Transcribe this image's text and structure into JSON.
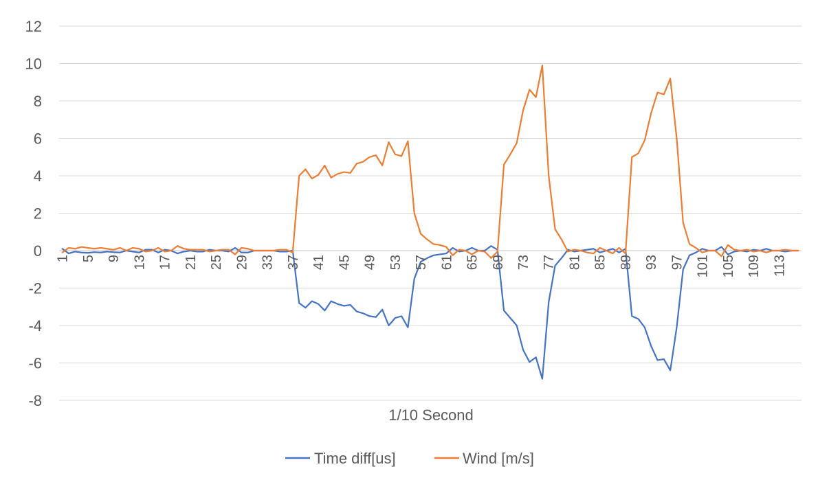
{
  "chart_data": {
    "type": "line",
    "title": "",
    "xlabel": "1/10 Second",
    "ylabel": "",
    "ylim": [
      -8,
      12
    ],
    "yticks": [
      12,
      10,
      8,
      6,
      4,
      2,
      0,
      -2,
      -4,
      -6,
      -8
    ],
    "x": [
      1,
      2,
      3,
      4,
      5,
      6,
      7,
      8,
      9,
      10,
      11,
      12,
      13,
      14,
      15,
      16,
      17,
      18,
      19,
      20,
      21,
      22,
      23,
      24,
      25,
      26,
      27,
      28,
      29,
      30,
      31,
      32,
      33,
      34,
      35,
      36,
      37,
      38,
      39,
      40,
      41,
      42,
      43,
      44,
      45,
      46,
      47,
      48,
      49,
      50,
      51,
      52,
      53,
      54,
      55,
      56,
      57,
      58,
      59,
      60,
      61,
      62,
      63,
      64,
      65,
      66,
      67,
      68,
      69,
      70,
      71,
      72,
      73,
      74,
      75,
      76,
      77,
      78,
      79,
      80,
      81,
      82,
      83,
      84,
      85,
      86,
      87,
      88,
      89,
      90,
      91,
      92,
      93,
      94,
      95,
      96,
      97,
      98,
      99,
      100,
      101,
      102,
      103,
      104,
      105,
      106,
      107,
      108,
      109,
      110,
      111,
      112,
      113,
      114,
      115,
      116
    ],
    "xtick_labels": [
      "1",
      "5",
      "9",
      "13",
      "17",
      "21",
      "25",
      "29",
      "33",
      "37",
      "41",
      "45",
      "49",
      "53",
      "57",
      "61",
      "65",
      "69",
      "73",
      "77",
      "81",
      "85",
      "89",
      "93",
      "97",
      "101",
      "105",
      "109",
      "113"
    ],
    "grid": "horizontal",
    "legend_position": "bottom",
    "series": [
      {
        "name": "Time diff[us]",
        "color": "#4472C4",
        "values": [
          0.1,
          -0.15,
          -0.05,
          -0.1,
          -0.12,
          -0.08,
          -0.1,
          -0.05,
          -0.08,
          -0.1,
          0.0,
          -0.05,
          -0.1,
          0.05,
          0.05,
          -0.1,
          0.05,
          0.0,
          -0.15,
          -0.05,
          0.0,
          -0.05,
          -0.05,
          0.05,
          0.0,
          0.0,
          -0.05,
          0.15,
          -0.1,
          -0.1,
          0.0,
          0.0,
          0.0,
          0.0,
          -0.05,
          -0.05,
          0.0,
          -2.8,
          -3.05,
          -2.7,
          -2.85,
          -3.2,
          -2.7,
          -2.85,
          -2.95,
          -2.9,
          -3.25,
          -3.35,
          -3.5,
          -3.55,
          -3.15,
          -4.0,
          -3.6,
          -3.5,
          -4.1,
          -1.5,
          -0.6,
          -0.4,
          -0.25,
          -0.2,
          -0.15,
          0.15,
          -0.05,
          0.0,
          0.15,
          0.0,
          0.0,
          0.25,
          0.05,
          -3.2,
          -3.6,
          -4.0,
          -5.3,
          -5.95,
          -5.7,
          -6.85,
          -2.75,
          -0.8,
          -0.4,
          0.05,
          -0.05,
          0.0,
          0.05,
          0.1,
          -0.1,
          0.0,
          0.1,
          -0.1,
          0.1,
          -3.5,
          -3.65,
          -4.1,
          -5.1,
          -5.85,
          -5.8,
          -6.4,
          -4.1,
          -1.0,
          -0.25,
          -0.1,
          0.1,
          0.0,
          0.0,
          0.2,
          -0.2,
          -0.05,
          0.0,
          -0.05,
          0.05,
          0.0,
          0.1,
          0.0,
          0.0,
          -0.05,
          0.0,
          0.0
        ]
      },
      {
        "name": "Wind [m/s]",
        "color": "#ED7D31",
        "values": [
          -0.1,
          0.15,
          0.1,
          0.2,
          0.15,
          0.1,
          0.15,
          0.1,
          0.05,
          0.15,
          0.0,
          0.15,
          0.1,
          -0.05,
          0.0,
          0.15,
          -0.05,
          0.0,
          0.25,
          0.1,
          0.05,
          0.05,
          0.05,
          -0.05,
          0.0,
          0.05,
          0.05,
          -0.2,
          0.15,
          0.1,
          0.0,
          0.0,
          0.0,
          0.0,
          0.05,
          0.05,
          -0.1,
          4.0,
          4.35,
          3.85,
          4.05,
          4.55,
          3.9,
          4.1,
          4.2,
          4.15,
          4.65,
          4.75,
          5.0,
          5.1,
          4.55,
          5.8,
          5.15,
          5.05,
          5.85,
          2.0,
          0.9,
          0.6,
          0.35,
          0.3,
          0.2,
          -0.25,
          0.05,
          0.0,
          -0.2,
          0.0,
          -0.05,
          -0.4,
          -0.05,
          4.6,
          5.15,
          5.75,
          7.5,
          8.6,
          8.2,
          9.9,
          4.0,
          1.15,
          0.6,
          -0.05,
          0.05,
          0.0,
          -0.1,
          -0.15,
          0.15,
          0.0,
          -0.15,
          0.15,
          -0.15,
          5.0,
          5.2,
          5.9,
          7.35,
          8.45,
          8.35,
          9.2,
          6.0,
          1.5,
          0.35,
          0.15,
          -0.1,
          0.0,
          0.0,
          -0.3,
          0.3,
          0.05,
          0.0,
          0.05,
          -0.05,
          0.0,
          -0.1,
          0.0,
          0.0,
          0.05,
          0.0,
          0.0
        ]
      }
    ]
  }
}
